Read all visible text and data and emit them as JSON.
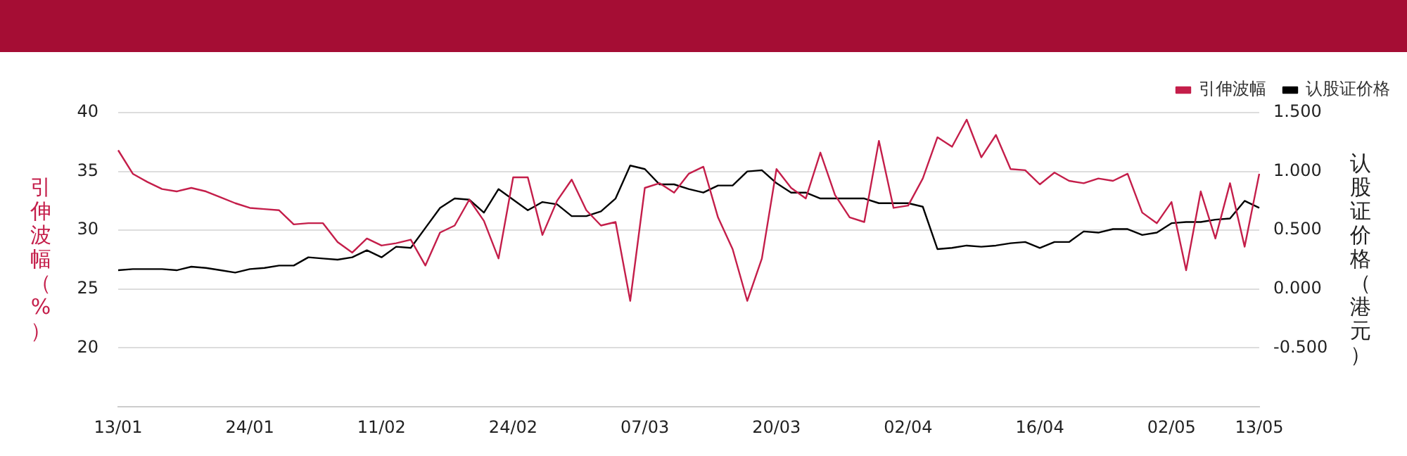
{
  "chart_data": {
    "type": "line",
    "ylabel": "引伸波幅（%）",
    "y2label": "认股证价格（港元）",
    "categories": [
      "13/01",
      null,
      null,
      null,
      null,
      null,
      null,
      null,
      null,
      "24/01",
      null,
      null,
      null,
      null,
      null,
      null,
      null,
      null,
      "11/02",
      null,
      null,
      null,
      null,
      null,
      null,
      null,
      null,
      "24/02",
      null,
      null,
      null,
      null,
      null,
      null,
      null,
      null,
      "07/03",
      null,
      null,
      null,
      null,
      null,
      null,
      null,
      null,
      "20/03",
      null,
      null,
      null,
      null,
      null,
      null,
      null,
      null,
      "02/04",
      null,
      null,
      null,
      null,
      null,
      null,
      null,
      null,
      "16/04",
      null,
      null,
      null,
      null,
      null,
      null,
      null,
      null,
      "02/05",
      null,
      null,
      null,
      null,
      null,
      "13/05"
    ],
    "series": [
      {
        "name": "引伸波幅",
        "color": "#c41e4a",
        "values": [
          36.8,
          34.8,
          34.1,
          33.5,
          33.3,
          33.6,
          33.3,
          32.8,
          32.3,
          31.9,
          31.8,
          31.7,
          30.5,
          30.6,
          30.6,
          29.0,
          28.1,
          29.3,
          28.7,
          28.9,
          29.2,
          27.0,
          29.8,
          30.4,
          32.6,
          30.8,
          27.6,
          34.5,
          34.5,
          29.6,
          32.5,
          34.3,
          31.7,
          30.4,
          30.7,
          24.0,
          33.6,
          34.0,
          33.2,
          34.8,
          35.4,
          31.1,
          28.4,
          24.0,
          27.6,
          35.2,
          33.6,
          32.7,
          36.6,
          33.0,
          31.1,
          30.7,
          37.6,
          31.9,
          32.1,
          34.4,
          37.9,
          37.1,
          39.4,
          36.2,
          38.1,
          35.2,
          35.1,
          33.9,
          34.9,
          34.2,
          34.0,
          34.4,
          34.2,
          34.8,
          31.5,
          30.6,
          32.4,
          26.6,
          33.3,
          29.3,
          34.0,
          28.6,
          34.8
        ]
      },
      {
        "name": "认股证价格",
        "color": "#000000",
        "axis": "y2",
        "values": [
          0.16,
          0.17,
          0.17,
          0.17,
          0.16,
          0.19,
          0.18,
          0.16,
          0.14,
          0.17,
          0.18,
          0.2,
          0.2,
          0.27,
          0.26,
          0.25,
          0.27,
          0.33,
          0.27,
          0.36,
          0.35,
          0.52,
          0.69,
          0.77,
          0.76,
          0.65,
          0.85,
          0.76,
          0.67,
          0.74,
          0.72,
          0.62,
          0.62,
          0.66,
          0.77,
          1.05,
          1.02,
          0.89,
          0.89,
          0.85,
          0.82,
          0.88,
          0.88,
          1.0,
          1.01,
          0.9,
          0.82,
          0.82,
          0.77,
          0.77,
          0.77,
          0.77,
          0.73,
          0.73,
          0.73,
          0.7,
          0.34,
          0.35,
          0.37,
          0.36,
          0.37,
          0.39,
          0.4,
          0.35,
          0.4,
          0.4,
          0.49,
          0.48,
          0.51,
          0.51,
          0.46,
          0.48,
          0.56,
          0.57,
          0.57,
          0.59,
          0.6,
          0.75,
          0.69
        ]
      }
    ],
    "ylim": [
      15,
      40
    ],
    "yticks": [
      20,
      25,
      30,
      35,
      40
    ],
    "y2lim": [
      -1,
      1.5
    ],
    "y2ticks": [
      {
        "value": -0.5,
        "label": "-0.500"
      },
      {
        "value": 0,
        "label": "0.000"
      },
      {
        "value": 0.5,
        "label": "0.500"
      },
      {
        "value": 1,
        "label": "1.000"
      },
      {
        "value": 1.5,
        "label": "1.500"
      }
    ],
    "grid": "y",
    "legend": "top right",
    "marker": "none",
    "line_style": "solid"
  }
}
